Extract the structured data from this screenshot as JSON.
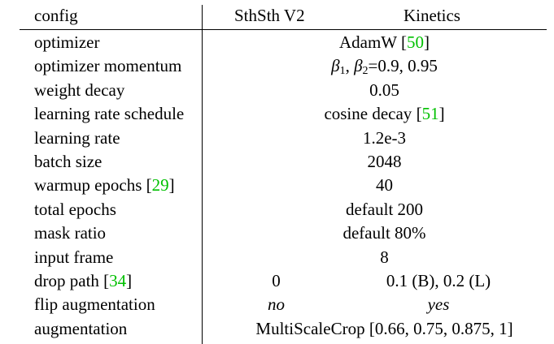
{
  "header": {
    "config": "config",
    "col_a": "SthSth V2",
    "col_b": "Kinetics"
  },
  "rows": [
    {
      "config": "optimizer",
      "value": "AdamW",
      "cite": "50"
    },
    {
      "config": "optimizer momentum",
      "beta1": "β",
      "sub1": "1",
      "sep": ", ",
      "beta2": "β",
      "sub2": "2",
      "value_tail": "=0.9, 0.95"
    },
    {
      "config": "weight decay",
      "value": "0.05"
    },
    {
      "config": "learning rate schedule",
      "value": "cosine decay",
      "cite": "51"
    },
    {
      "config": "learning rate",
      "value": "1.2e-3"
    },
    {
      "config": "batch size",
      "value": "2048"
    },
    {
      "config": "warmup epochs",
      "config_cite": "29",
      "value": "40"
    },
    {
      "config": "total epochs",
      "value": "default 200"
    },
    {
      "config": "mask ratio",
      "value": "default 80%"
    },
    {
      "config": "input frame",
      "value": "8"
    },
    {
      "config": "drop path",
      "config_cite": "34",
      "value_a": "0",
      "value_b": "0.1 (B), 0.2 (L)"
    },
    {
      "config": "flip augmentation",
      "value_a": "no",
      "value_b": "yes"
    },
    {
      "config": "augmentation",
      "value": "MultiScaleCrop [0.66, 0.75, 0.875, 1]"
    }
  ],
  "colors": {
    "citation": "#00c000",
    "text": "#000000"
  }
}
